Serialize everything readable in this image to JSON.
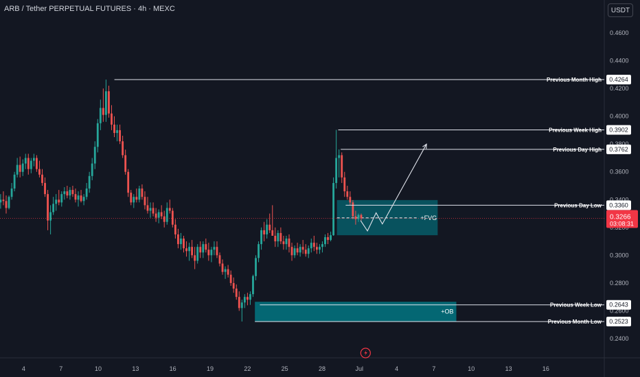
{
  "header": {
    "title": "ARB / Tether PERPETUAL FUTURES · 4h · MEXC",
    "currency": "USDT"
  },
  "colors": {
    "background": "#131722",
    "up": "#26a69a",
    "down": "#ef5350",
    "zone": "#00838f",
    "current_price": "#f23645"
  },
  "chart_data": {
    "type": "candlestick",
    "ylim": [
      0.23,
      0.475
    ],
    "y_ticks": [
      "0.4600",
      "0.4400",
      "0.4200",
      "0.4000",
      "0.3800",
      "0.3600",
      "0.3400",
      "0.3200",
      "0.3000",
      "0.2800",
      "0.2600",
      "0.2400"
    ],
    "x_ticks": [
      "4",
      "7",
      "10",
      "13",
      "16",
      "19",
      "22",
      "25",
      "28",
      "Jul",
      "4",
      "7",
      "10",
      "13",
      "16"
    ],
    "x_tick_days": [
      4,
      7,
      10,
      13,
      16,
      19,
      22,
      25,
      28,
      31,
      34,
      37,
      40,
      43,
      46
    ],
    "x_range_days": [
      2.1,
      50.7
    ],
    "levels": [
      {
        "name": "Previous Month High",
        "price": "0.4264",
        "value": 0.4264,
        "start_day": 11.3
      },
      {
        "name": "Previous Week High",
        "price": "0.3902",
        "value": 0.3902,
        "start_day": 29.3
      },
      {
        "name": "Previous Day High",
        "price": "0.3762",
        "value": 0.3762,
        "start_day": 29.5
      },
      {
        "name": "Previous Day Low",
        "price": "0.3360",
        "value": 0.336,
        "start_day": 29.9
      },
      {
        "name": "Previous Week Low",
        "price": "0.2643",
        "value": 0.2643,
        "start_day": 23.0
      },
      {
        "name": "Previous Month Low",
        "price": "0.2523",
        "value": 0.2523,
        "start_day": 22.6
      }
    ],
    "current": {
      "price": "0.3266",
      "value": 0.3266,
      "countdown": "03:08:31"
    },
    "zones": [
      {
        "label": "FVG",
        "top": 0.3397,
        "bottom": 0.3144,
        "start_day": 29.2,
        "end_day": 37.3,
        "midline": 0.3269
      },
      {
        "label": "+OB",
        "top": 0.2665,
        "bottom": 0.2523,
        "start_day": 22.6,
        "end_day": 38.8
      }
    ],
    "projection": [
      {
        "day": 31.1,
        "value": 0.325
      },
      {
        "day": 31.65,
        "value": 0.3175
      },
      {
        "day": 32.35,
        "value": 0.3305
      },
      {
        "day": 32.85,
        "value": 0.3225
      },
      {
        "day": 36.4,
        "value": 0.38
      }
    ],
    "candles": [
      {
        "o": 0.338,
        "h": 0.344,
        "l": 0.3335,
        "c": 0.34
      },
      {
        "o": 0.34,
        "h": 0.346,
        "l": 0.336,
        "c": 0.339
      },
      {
        "o": 0.339,
        "h": 0.343,
        "l": 0.33,
        "c": 0.334
      },
      {
        "o": 0.334,
        "h": 0.343,
        "l": 0.333,
        "c": 0.342
      },
      {
        "o": 0.342,
        "h": 0.352,
        "l": 0.34,
        "c": 0.348
      },
      {
        "o": 0.348,
        "h": 0.36,
        "l": 0.346,
        "c": 0.358
      },
      {
        "o": 0.358,
        "h": 0.37,
        "l": 0.356,
        "c": 0.365
      },
      {
        "o": 0.365,
        "h": 0.371,
        "l": 0.356,
        "c": 0.36
      },
      {
        "o": 0.36,
        "h": 0.369,
        "l": 0.357,
        "c": 0.366
      },
      {
        "o": 0.366,
        "h": 0.373,
        "l": 0.362,
        "c": 0.37
      },
      {
        "o": 0.37,
        "h": 0.373,
        "l": 0.358,
        "c": 0.362
      },
      {
        "o": 0.362,
        "h": 0.37,
        "l": 0.359,
        "c": 0.368
      },
      {
        "o": 0.368,
        "h": 0.373,
        "l": 0.364,
        "c": 0.37
      },
      {
        "o": 0.37,
        "h": 0.372,
        "l": 0.36,
        "c": 0.362
      },
      {
        "o": 0.362,
        "h": 0.368,
        "l": 0.356,
        "c": 0.358
      },
      {
        "o": 0.358,
        "h": 0.362,
        "l": 0.35,
        "c": 0.352
      },
      {
        "o": 0.352,
        "h": 0.356,
        "l": 0.342,
        "c": 0.344
      },
      {
        "o": 0.344,
        "h": 0.347,
        "l": 0.318,
        "c": 0.325
      },
      {
        "o": 0.325,
        "h": 0.336,
        "l": 0.315,
        "c": 0.331
      },
      {
        "o": 0.331,
        "h": 0.342,
        "l": 0.329,
        "c": 0.337
      },
      {
        "o": 0.337,
        "h": 0.344,
        "l": 0.332,
        "c": 0.34
      },
      {
        "o": 0.34,
        "h": 0.347,
        "l": 0.336,
        "c": 0.338
      },
      {
        "o": 0.338,
        "h": 0.346,
        "l": 0.335,
        "c": 0.344
      },
      {
        "o": 0.344,
        "h": 0.349,
        "l": 0.34,
        "c": 0.346
      },
      {
        "o": 0.346,
        "h": 0.35,
        "l": 0.341,
        "c": 0.343
      },
      {
        "o": 0.343,
        "h": 0.349,
        "l": 0.34,
        "c": 0.347
      },
      {
        "o": 0.347,
        "h": 0.35,
        "l": 0.342,
        "c": 0.344
      },
      {
        "o": 0.344,
        "h": 0.348,
        "l": 0.338,
        "c": 0.34
      },
      {
        "o": 0.34,
        "h": 0.346,
        "l": 0.335,
        "c": 0.343
      },
      {
        "o": 0.343,
        "h": 0.347,
        "l": 0.338,
        "c": 0.339
      },
      {
        "o": 0.339,
        "h": 0.344,
        "l": 0.336,
        "c": 0.342
      },
      {
        "o": 0.342,
        "h": 0.352,
        "l": 0.34,
        "c": 0.348
      },
      {
        "o": 0.348,
        "h": 0.36,
        "l": 0.345,
        "c": 0.357
      },
      {
        "o": 0.357,
        "h": 0.37,
        "l": 0.354,
        "c": 0.366
      },
      {
        "o": 0.366,
        "h": 0.382,
        "l": 0.362,
        "c": 0.378
      },
      {
        "o": 0.378,
        "h": 0.398,
        "l": 0.374,
        "c": 0.395
      },
      {
        "o": 0.395,
        "h": 0.412,
        "l": 0.39,
        "c": 0.406
      },
      {
        "o": 0.406,
        "h": 0.42,
        "l": 0.396,
        "c": 0.401
      },
      {
        "o": 0.401,
        "h": 0.4264,
        "l": 0.396,
        "c": 0.418
      },
      {
        "o": 0.418,
        "h": 0.422,
        "l": 0.399,
        "c": 0.402
      },
      {
        "o": 0.402,
        "h": 0.408,
        "l": 0.39,
        "c": 0.394
      },
      {
        "o": 0.394,
        "h": 0.4,
        "l": 0.385,
        "c": 0.388
      },
      {
        "o": 0.388,
        "h": 0.394,
        "l": 0.382,
        "c": 0.39
      },
      {
        "o": 0.39,
        "h": 0.394,
        "l": 0.38,
        "c": 0.382
      },
      {
        "o": 0.382,
        "h": 0.386,
        "l": 0.37,
        "c": 0.372
      },
      {
        "o": 0.372,
        "h": 0.376,
        "l": 0.358,
        "c": 0.36
      },
      {
        "o": 0.36,
        "h": 0.362,
        "l": 0.342,
        "c": 0.345
      },
      {
        "o": 0.345,
        "h": 0.347,
        "l": 0.336,
        "c": 0.338
      },
      {
        "o": 0.338,
        "h": 0.344,
        "l": 0.334,
        "c": 0.342
      },
      {
        "o": 0.342,
        "h": 0.348,
        "l": 0.338,
        "c": 0.34
      },
      {
        "o": 0.34,
        "h": 0.35,
        "l": 0.338,
        "c": 0.348
      },
      {
        "o": 0.348,
        "h": 0.351,
        "l": 0.34,
        "c": 0.342
      },
      {
        "o": 0.342,
        "h": 0.346,
        "l": 0.333,
        "c": 0.336
      },
      {
        "o": 0.336,
        "h": 0.342,
        "l": 0.33,
        "c": 0.332
      },
      {
        "o": 0.332,
        "h": 0.338,
        "l": 0.327,
        "c": 0.334
      },
      {
        "o": 0.334,
        "h": 0.338,
        "l": 0.328,
        "c": 0.33
      },
      {
        "o": 0.33,
        "h": 0.334,
        "l": 0.324,
        "c": 0.327
      },
      {
        "o": 0.327,
        "h": 0.333,
        "l": 0.323,
        "c": 0.331
      },
      {
        "o": 0.331,
        "h": 0.336,
        "l": 0.326,
        "c": 0.328
      },
      {
        "o": 0.328,
        "h": 0.332,
        "l": 0.32,
        "c": 0.324
      },
      {
        "o": 0.324,
        "h": 0.338,
        "l": 0.322,
        "c": 0.334
      },
      {
        "o": 0.334,
        "h": 0.34,
        "l": 0.33,
        "c": 0.332
      },
      {
        "o": 0.332,
        "h": 0.334,
        "l": 0.32,
        "c": 0.322
      },
      {
        "o": 0.322,
        "h": 0.326,
        "l": 0.312,
        "c": 0.315
      },
      {
        "o": 0.315,
        "h": 0.319,
        "l": 0.305,
        "c": 0.308
      },
      {
        "o": 0.308,
        "h": 0.316,
        "l": 0.304,
        "c": 0.312
      },
      {
        "o": 0.312,
        "h": 0.314,
        "l": 0.302,
        "c": 0.305
      },
      {
        "o": 0.305,
        "h": 0.31,
        "l": 0.299,
        "c": 0.303
      },
      {
        "o": 0.303,
        "h": 0.309,
        "l": 0.296,
        "c": 0.306
      },
      {
        "o": 0.306,
        "h": 0.311,
        "l": 0.298,
        "c": 0.3
      },
      {
        "o": 0.3,
        "h": 0.306,
        "l": 0.29,
        "c": 0.296
      },
      {
        "o": 0.296,
        "h": 0.308,
        "l": 0.294,
        "c": 0.306
      },
      {
        "o": 0.306,
        "h": 0.31,
        "l": 0.298,
        "c": 0.302
      },
      {
        "o": 0.302,
        "h": 0.31,
        "l": 0.298,
        "c": 0.308
      },
      {
        "o": 0.308,
        "h": 0.312,
        "l": 0.302,
        "c": 0.304
      },
      {
        "o": 0.304,
        "h": 0.309,
        "l": 0.296,
        "c": 0.3
      },
      {
        "o": 0.3,
        "h": 0.306,
        "l": 0.295,
        "c": 0.304
      },
      {
        "o": 0.304,
        "h": 0.31,
        "l": 0.3,
        "c": 0.306
      },
      {
        "o": 0.306,
        "h": 0.31,
        "l": 0.298,
        "c": 0.3
      },
      {
        "o": 0.3,
        "h": 0.302,
        "l": 0.292,
        "c": 0.294
      },
      {
        "o": 0.294,
        "h": 0.297,
        "l": 0.286,
        "c": 0.288
      },
      {
        "o": 0.288,
        "h": 0.292,
        "l": 0.283,
        "c": 0.29
      },
      {
        "o": 0.29,
        "h": 0.293,
        "l": 0.284,
        "c": 0.286
      },
      {
        "o": 0.286,
        "h": 0.289,
        "l": 0.278,
        "c": 0.28
      },
      {
        "o": 0.28,
        "h": 0.284,
        "l": 0.273,
        "c": 0.276
      },
      {
        "o": 0.276,
        "h": 0.279,
        "l": 0.268,
        "c": 0.27
      },
      {
        "o": 0.27,
        "h": 0.274,
        "l": 0.26,
        "c": 0.262
      },
      {
        "o": 0.262,
        "h": 0.268,
        "l": 0.2523,
        "c": 0.266
      },
      {
        "o": 0.266,
        "h": 0.272,
        "l": 0.262,
        "c": 0.27
      },
      {
        "o": 0.27,
        "h": 0.273,
        "l": 0.264,
        "c": 0.268
      },
      {
        "o": 0.268,
        "h": 0.274,
        "l": 0.2643,
        "c": 0.272
      },
      {
        "o": 0.272,
        "h": 0.286,
        "l": 0.27,
        "c": 0.285
      },
      {
        "o": 0.285,
        "h": 0.3,
        "l": 0.282,
        "c": 0.298
      },
      {
        "o": 0.298,
        "h": 0.31,
        "l": 0.295,
        "c": 0.308
      },
      {
        "o": 0.308,
        "h": 0.32,
        "l": 0.304,
        "c": 0.318
      },
      {
        "o": 0.318,
        "h": 0.324,
        "l": 0.31,
        "c": 0.315
      },
      {
        "o": 0.315,
        "h": 0.326,
        "l": 0.312,
        "c": 0.322
      },
      {
        "o": 0.322,
        "h": 0.33,
        "l": 0.316,
        "c": 0.318
      },
      {
        "o": 0.318,
        "h": 0.336,
        "l": 0.314,
        "c": 0.314
      },
      {
        "o": 0.314,
        "h": 0.32,
        "l": 0.306,
        "c": 0.31
      },
      {
        "o": 0.31,
        "h": 0.318,
        "l": 0.306,
        "c": 0.316
      },
      {
        "o": 0.316,
        "h": 0.32,
        "l": 0.308,
        "c": 0.31
      },
      {
        "o": 0.31,
        "h": 0.314,
        "l": 0.304,
        "c": 0.308
      },
      {
        "o": 0.308,
        "h": 0.314,
        "l": 0.304,
        "c": 0.312
      },
      {
        "o": 0.312,
        "h": 0.315,
        "l": 0.302,
        "c": 0.306
      },
      {
        "o": 0.306,
        "h": 0.309,
        "l": 0.296,
        "c": 0.3
      },
      {
        "o": 0.3,
        "h": 0.307,
        "l": 0.298,
        "c": 0.305
      },
      {
        "o": 0.305,
        "h": 0.309,
        "l": 0.3,
        "c": 0.302
      },
      {
        "o": 0.302,
        "h": 0.308,
        "l": 0.299,
        "c": 0.306
      },
      {
        "o": 0.306,
        "h": 0.311,
        "l": 0.301,
        "c": 0.304
      },
      {
        "o": 0.304,
        "h": 0.308,
        "l": 0.299,
        "c": 0.301
      },
      {
        "o": 0.301,
        "h": 0.307,
        "l": 0.298,
        "c": 0.305
      },
      {
        "o": 0.305,
        "h": 0.312,
        "l": 0.302,
        "c": 0.309
      },
      {
        "o": 0.309,
        "h": 0.314,
        "l": 0.303,
        "c": 0.306
      },
      {
        "o": 0.306,
        "h": 0.309,
        "l": 0.301,
        "c": 0.304
      },
      {
        "o": 0.304,
        "h": 0.308,
        "l": 0.301,
        "c": 0.306
      },
      {
        "o": 0.306,
        "h": 0.31,
        "l": 0.302,
        "c": 0.308
      },
      {
        "o": 0.308,
        "h": 0.315,
        "l": 0.306,
        "c": 0.313
      },
      {
        "o": 0.313,
        "h": 0.316,
        "l": 0.308,
        "c": 0.311
      },
      {
        "o": 0.311,
        "h": 0.317,
        "l": 0.31,
        "c": 0.3144
      },
      {
        "o": 0.3144,
        "h": 0.356,
        "l": 0.314,
        "c": 0.352
      },
      {
        "o": 0.352,
        "h": 0.3902,
        "l": 0.348,
        "c": 0.37
      },
      {
        "o": 0.37,
        "h": 0.3762,
        "l": 0.356,
        "c": 0.372
      },
      {
        "o": 0.372,
        "h": 0.374,
        "l": 0.352,
        "c": 0.356
      },
      {
        "o": 0.356,
        "h": 0.36,
        "l": 0.342,
        "c": 0.346
      },
      {
        "o": 0.346,
        "h": 0.35,
        "l": 0.34,
        "c": 0.342
      },
      {
        "o": 0.342,
        "h": 0.346,
        "l": 0.336,
        "c": 0.338
      },
      {
        "o": 0.338,
        "h": 0.3397,
        "l": 0.326,
        "c": 0.328
      },
      {
        "o": 0.328,
        "h": 0.332,
        "l": 0.322,
        "c": 0.326
      },
      {
        "o": 0.326,
        "h": 0.33,
        "l": 0.324,
        "c": 0.329
      },
      {
        "o": 0.329,
        "h": 0.33,
        "l": 0.325,
        "c": 0.3266
      }
    ]
  }
}
